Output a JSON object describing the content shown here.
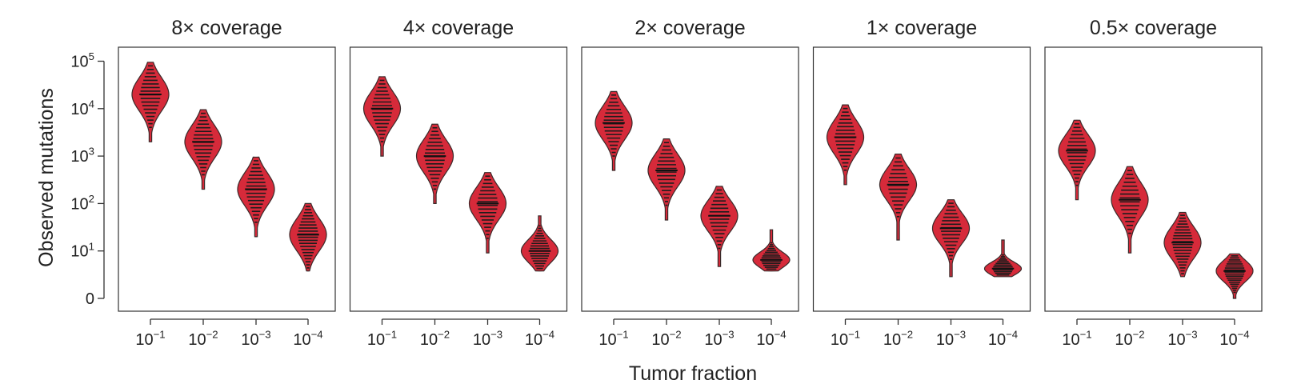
{
  "chart_data": {
    "type": "violin",
    "ylabel": "Observed mutations",
    "xlabel": "Tumor fraction",
    "y_scale": "symlog",
    "y_ticks": [
      {
        "value": 0,
        "base": "0",
        "exp": ""
      },
      {
        "value": 10,
        "base": "10",
        "exp": "1"
      },
      {
        "value": 100,
        "base": "10",
        "exp": "2"
      },
      {
        "value": 1000,
        "base": "10",
        "exp": "3"
      },
      {
        "value": 10000,
        "base": "10",
        "exp": "4"
      },
      {
        "value": 100000,
        "base": "10",
        "exp": "5"
      }
    ],
    "categories": [
      {
        "value": 0.1,
        "base": "10",
        "exp": "−1"
      },
      {
        "value": 0.01,
        "base": "10",
        "exp": "−2"
      },
      {
        "value": 0.001,
        "base": "10",
        "exp": "−3"
      },
      {
        "value": 0.0001,
        "base": "10",
        "exp": "−4"
      }
    ],
    "color": "#d62a3a",
    "panels": [
      {
        "title": "8× coverage",
        "violins": [
          {
            "min": 2000,
            "median": 20000,
            "max": 95000
          },
          {
            "min": 200,
            "median": 2000,
            "max": 9500
          },
          {
            "min": 20,
            "median": 200,
            "max": 950
          },
          {
            "min": 3,
            "median": 22,
            "max": 100
          }
        ]
      },
      {
        "title": "4× coverage",
        "violins": [
          {
            "min": 1000,
            "median": 10000,
            "max": 47000
          },
          {
            "min": 100,
            "median": 1000,
            "max": 4700
          },
          {
            "min": 9,
            "median": 100,
            "max": 450
          },
          {
            "min": 3,
            "median": 10,
            "max": 55
          }
        ]
      },
      {
        "title": "2× coverage",
        "violins": [
          {
            "min": 500,
            "median": 5000,
            "max": 23000
          },
          {
            "min": 45,
            "median": 500,
            "max": 2300
          },
          {
            "min": 4,
            "median": 55,
            "max": 230
          },
          {
            "min": 3,
            "median": 6,
            "max": 28
          }
        ]
      },
      {
        "title": "1× coverage",
        "violins": [
          {
            "min": 250,
            "median": 2500,
            "max": 12000
          },
          {
            "min": 17,
            "median": 250,
            "max": 1100
          },
          {
            "min": 2,
            "median": 30,
            "max": 120
          },
          {
            "min": 2,
            "median": 3.5,
            "max": 17
          }
        ]
      },
      {
        "title": "0.5× coverage",
        "violins": [
          {
            "min": 120,
            "median": 1300,
            "max": 5700
          },
          {
            "min": 9,
            "median": 120,
            "max": 600
          },
          {
            "min": 2,
            "median": 15,
            "max": 65
          },
          {
            "min": 0,
            "median": 3,
            "max": 8.5
          }
        ]
      }
    ]
  }
}
